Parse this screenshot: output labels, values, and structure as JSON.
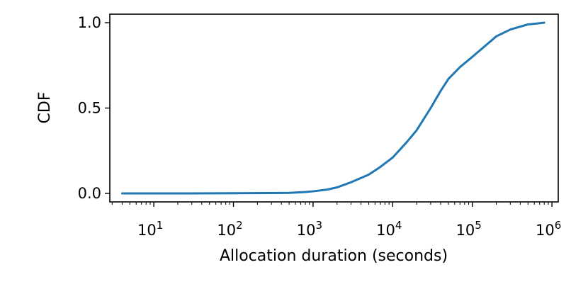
{
  "chart_data": {
    "type": "line",
    "title": "",
    "xlabel": "Allocation duration (seconds)",
    "ylabel": "CDF",
    "xscale": "log",
    "xlim": [
      2.8,
      1200000
    ],
    "ylim": [
      -0.05,
      1.05
    ],
    "grid": false,
    "legend": "none",
    "x_ticks": [
      {
        "base": "10",
        "exp": "1",
        "value": 10
      },
      {
        "base": "10",
        "exp": "2",
        "value": 100
      },
      {
        "base": "10",
        "exp": "3",
        "value": 1000
      },
      {
        "base": "10",
        "exp": "4",
        "value": 10000
      },
      {
        "base": "10",
        "exp": "5",
        "value": 100000
      },
      {
        "base": "10",
        "exp": "6",
        "value": 1000000
      }
    ],
    "y_ticks": [
      {
        "label": "0.0",
        "value": 0.0
      },
      {
        "label": "0.5",
        "value": 0.5
      },
      {
        "label": "1.0",
        "value": 1.0
      }
    ],
    "series": [
      {
        "color": "#1f77b4",
        "x": [
          4,
          10,
          30,
          100,
          300,
          500,
          800,
          1000,
          1500,
          2000,
          3000,
          5000,
          7000,
          10000,
          15000,
          20000,
          30000,
          40000,
          50000,
          70000,
          100000,
          150000,
          200000,
          300000,
          500000,
          800000
        ],
        "y": [
          0.0,
          0.0,
          0.0,
          0.001,
          0.002,
          0.003,
          0.008,
          0.012,
          0.022,
          0.035,
          0.065,
          0.11,
          0.155,
          0.21,
          0.3,
          0.37,
          0.5,
          0.6,
          0.67,
          0.74,
          0.8,
          0.87,
          0.92,
          0.96,
          0.99,
          1.0
        ]
      }
    ]
  }
}
